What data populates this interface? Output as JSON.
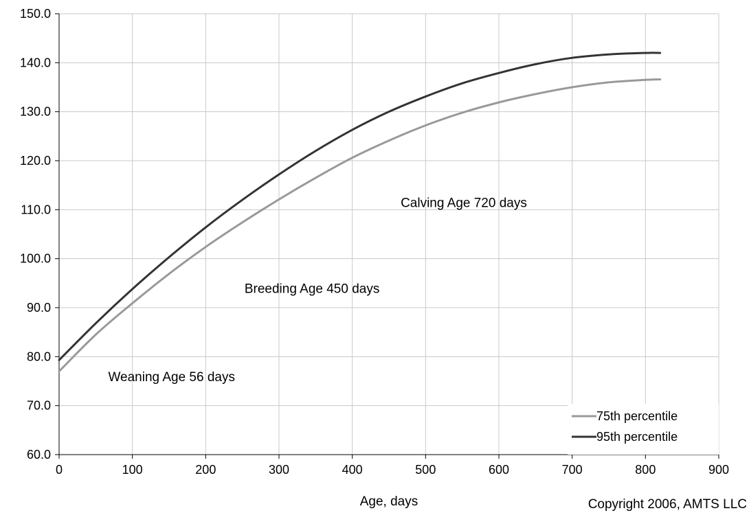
{
  "chart_data": {
    "type": "line",
    "title": "",
    "xlabel": "Age, days",
    "ylabel": "",
    "xlim": [
      0,
      900
    ],
    "ylim": [
      60,
      150
    ],
    "x_ticks": [
      0,
      100,
      200,
      300,
      400,
      500,
      600,
      700,
      800,
      900
    ],
    "y_ticks": [
      60,
      70,
      80,
      90,
      100,
      110,
      120,
      130,
      140,
      150
    ],
    "x_tick_labels": [
      "0",
      "100",
      "200",
      "300",
      "400",
      "500",
      "600",
      "700",
      "800",
      "900"
    ],
    "y_tick_labels": [
      "60.0",
      "70.0",
      "80.0",
      "90.0",
      "100.0",
      "110.0",
      "120.0",
      "130.0",
      "140.0",
      "150.0"
    ],
    "grid": true,
    "legend_position": "bottom-right",
    "series": [
      {
        "name": "75th percentile",
        "color": "#999999",
        "x": [
          0,
          50,
          100,
          150,
          200,
          250,
          300,
          350,
          400,
          450,
          500,
          550,
          600,
          650,
          700,
          750,
          800,
          820
        ],
        "y": [
          77.0,
          84.5,
          90.9,
          96.9,
          102.4,
          107.4,
          112.1,
          116.5,
          120.6,
          124.1,
          127.2,
          129.8,
          131.9,
          133.6,
          135.0,
          136.0,
          136.5,
          136.6
        ]
      },
      {
        "name": "95th percentile",
        "color": "#333333",
        "x": [
          0,
          50,
          100,
          150,
          200,
          250,
          300,
          350,
          400,
          450,
          500,
          550,
          600,
          650,
          700,
          750,
          800,
          820
        ],
        "y": [
          79.3,
          86.8,
          93.8,
          100.3,
          106.4,
          112.0,
          117.2,
          122.0,
          126.3,
          130.0,
          133.1,
          135.8,
          137.9,
          139.7,
          141.0,
          141.7,
          142.0,
          142.0
        ]
      }
    ],
    "annotations": [
      {
        "text": "Weaning Age 56 days",
        "x": 67,
        "y": 76
      },
      {
        "text": "Breeding Age 450 days",
        "x": 253,
        "y": 94
      },
      {
        "text": "Calving Age 720 days",
        "x": 466,
        "y": 111.5
      }
    ],
    "footer": "Copyright 2006, AMTS LLC"
  }
}
